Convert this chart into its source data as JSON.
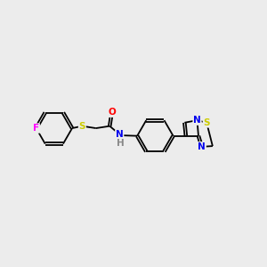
{
  "background_color": "#ececec",
  "bond_color": "#000000",
  "atom_colors": {
    "F": "#ff00ff",
    "S": "#cccc00",
    "O": "#ff0000",
    "N": "#0000ee",
    "C": "#000000"
  },
  "bond_lw": 1.3,
  "double_sep": 0.09,
  "font_size": 7.5,
  "figsize": [
    3.0,
    3.0
  ],
  "dpi": 100
}
